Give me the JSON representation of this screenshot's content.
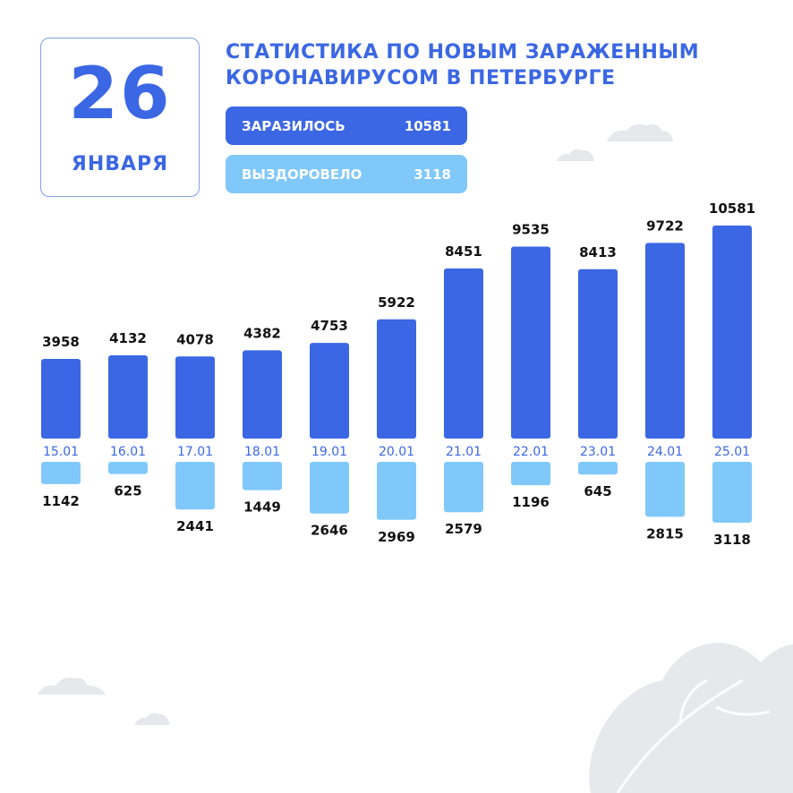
{
  "date_card": {
    "day": "26",
    "month": "ЯНВАРЯ"
  },
  "title": {
    "line1": "СТАТИСТИКА ПО НОВЫМ ЗАРАЖЕННЫМ",
    "line2": "КОРОНАВИРУСОМ В ПЕТЕРБУРГЕ"
  },
  "summary": {
    "infected_label": "ЗАРАЗИЛОСЬ",
    "infected_value": "10581",
    "recovered_label": "ВЫЗДОРОВЕЛО",
    "recovered_value": "3118"
  },
  "colors": {
    "infected": "#3b67e4",
    "recovered": "#80c8fa",
    "decoration": "#e6e8ec"
  },
  "chart_data": {
    "type": "bar",
    "categories": [
      "15.01",
      "16.01",
      "17.01",
      "18.01",
      "19.01",
      "20.01",
      "21.01",
      "22.01",
      "23.01",
      "24.01",
      "25.01"
    ],
    "series": [
      {
        "name": "ЗАРАЗИЛОСЬ",
        "values": [
          3958,
          4132,
          4078,
          4382,
          4753,
          5922,
          8451,
          9535,
          8413,
          9722,
          10581
        ]
      },
      {
        "name": "ВЫЗДОРОВЕЛО",
        "values": [
          1142,
          625,
          2441,
          1449,
          2646,
          2969,
          2579,
          1196,
          645,
          2815,
          3118
        ]
      }
    ],
    "title": "",
    "xlabel": "",
    "ylabel": "",
    "grid": false,
    "legend": "none"
  }
}
